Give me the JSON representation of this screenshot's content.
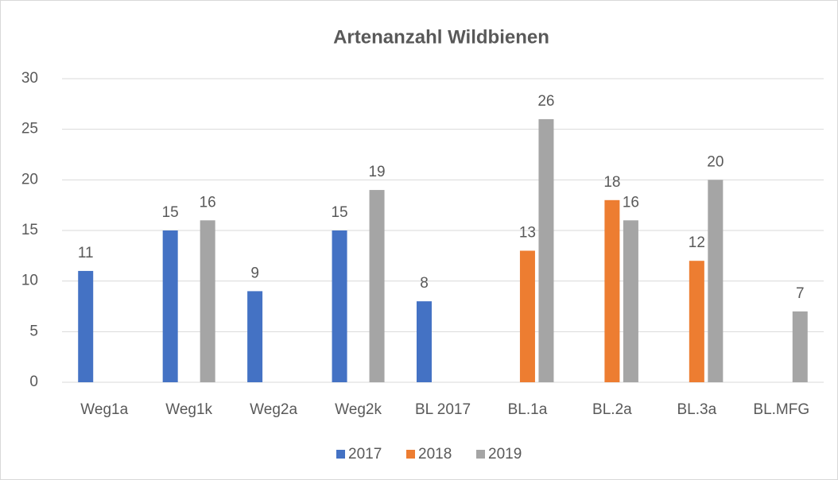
{
  "chart_data": {
    "type": "bar",
    "title": "Artenanzahl Wildbienen",
    "categories": [
      "Weg1a",
      "Weg1k",
      "Weg2a",
      "Weg2k",
      "BL 2017",
      "BL.1a",
      "BL.2a",
      "BL.3a",
      "BL.MFG"
    ],
    "series": [
      {
        "name": "2017",
        "color": "#4472c4",
        "values": [
          11,
          15,
          9,
          15,
          8,
          null,
          null,
          null,
          null
        ]
      },
      {
        "name": "2018",
        "color": "#ed7d31",
        "values": [
          null,
          null,
          null,
          null,
          null,
          13,
          18,
          12,
          null
        ]
      },
      {
        "name": "2019",
        "color": "#a5a5a5",
        "values": [
          null,
          16,
          null,
          19,
          null,
          26,
          16,
          20,
          7
        ]
      }
    ],
    "ylim": [
      0,
      30
    ],
    "yticks": [
      0,
      5,
      10,
      15,
      20,
      25,
      30
    ],
    "grid": true,
    "legend": "bottom"
  }
}
